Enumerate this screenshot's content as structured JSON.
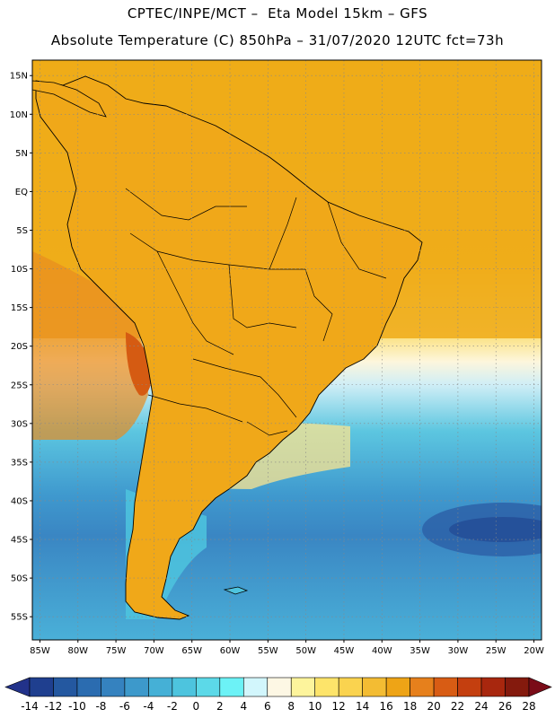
{
  "header": {
    "line1": "CPTEC/INPE/MCT –  Eta Model 15km – GFS",
    "line2": "Absolute Temperature (C) 850hPa – 31/07/2020 12UTC fct=73h"
  },
  "map": {
    "lat_labels": [
      "15N",
      "10N",
      "5N",
      "EQ",
      "5S",
      "10S",
      "15S",
      "20S",
      "25S",
      "30S",
      "35S",
      "40S",
      "45S",
      "50S",
      "55S"
    ],
    "lon_labels": [
      "85W",
      "80W",
      "75W",
      "70W",
      "65W",
      "60W",
      "55W",
      "50W",
      "45W",
      "40W",
      "35W",
      "30W",
      "25W",
      "20W"
    ],
    "land_color": "#f1ab16",
    "ocean_warm_color": "#f1b81c",
    "ocean_cold_color": "#3f99ce"
  },
  "colorbar": {
    "labels": [
      "-14",
      "-12",
      "-10",
      "-8",
      "-6",
      "-4",
      "-2",
      "0",
      "2",
      "4",
      "6",
      "8",
      "10",
      "12",
      "14",
      "16",
      "18",
      "20",
      "22",
      "24",
      "26",
      "28"
    ],
    "colors": [
      "#1f3f8f",
      "#2458a0",
      "#2b6cb0",
      "#3582bf",
      "#3d99cb",
      "#45b0d6",
      "#4dc4de",
      "#5cd9e8",
      "#6cf2f6",
      "#d2f6fc",
      "#fdf7e4",
      "#fdf49c",
      "#fde46a",
      "#fad34f",
      "#f3bc33",
      "#eea416",
      "#e6801c",
      "#d85c14",
      "#c43f0f",
      "#a8270e",
      "#841a0d"
    ],
    "under_color": "#22328a",
    "over_color": "#7a0c18"
  }
}
